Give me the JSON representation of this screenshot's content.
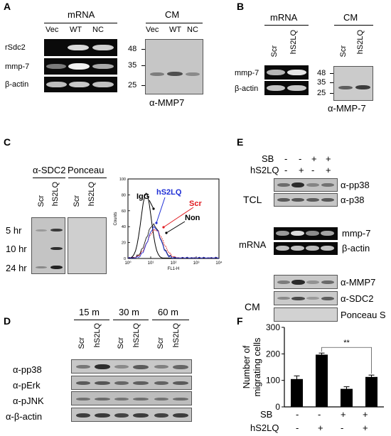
{
  "panel_a": {
    "letter": "A",
    "mrna_header": "mRNA",
    "cm_header": "CM",
    "mrna_lanes": [
      "Vec",
      "WT",
      "NC"
    ],
    "cm_lanes": [
      "Vec",
      "WT",
      "NC"
    ],
    "rows": [
      "rSdc2",
      "mmp-7",
      "β-actin"
    ],
    "mw": [
      "48",
      "35",
      "25"
    ],
    "antibody": "α-MMP7"
  },
  "panel_b": {
    "letter": "B",
    "mrna_header": "mRNA",
    "cm_header": "CM",
    "lanes": [
      "Scr",
      "hS2LQ"
    ],
    "rows": [
      "mmp-7",
      "β-actin"
    ],
    "mw": [
      "48",
      "35",
      "25"
    ],
    "antibody": "α-MMP-7"
  },
  "panel_c": {
    "letter": "C",
    "blot_header": "α-SDC2",
    "stain_header": "Ponceau",
    "lanes": [
      "Scr",
      "hS2LQ"
    ],
    "times": [
      "5 hr",
      "10 hr",
      "24 hr"
    ],
    "flow": {
      "ylabel": "Counts",
      "xlabel": "FL1-H",
      "yticks": [
        "0",
        "20",
        "40",
        "60",
        "80",
        "100"
      ],
      "xticks": [
        "10⁰",
        "10¹",
        "10²",
        "10³",
        "10⁴"
      ],
      "labels": [
        "IgG",
        "hS2LQ",
        "Scr",
        "Non"
      ],
      "colors": {
        "IgG": "#000000",
        "hS2LQ": "#1f2fd6",
        "Scr": "#e0191f",
        "Non": "#000000"
      }
    }
  },
  "panel_d": {
    "letter": "D",
    "timepoints": [
      "15 m",
      "30 m",
      "60 m"
    ],
    "lanes": [
      "Scr",
      "hS2LQ",
      "Scr",
      "hS2LQ",
      "Scr",
      "hS2LQ"
    ],
    "rows": [
      "α-pp38",
      "α-pErk",
      "α-pJNK",
      "α-β-actin"
    ]
  },
  "panel_e": {
    "letter": "E",
    "sb_label": "SB",
    "hs2lq_label": "hS2LQ",
    "sb_signs": [
      "-",
      "-",
      "+",
      "+"
    ],
    "hs2lq_signs": [
      "-",
      "+",
      "-",
      "+"
    ],
    "groups": [
      "TCL",
      "mRNA",
      "CM"
    ],
    "tcl_rows": [
      "α-pp38",
      "α-p38"
    ],
    "mrna_rows": [
      "mmp-7",
      "β-actin"
    ],
    "cm_rows": [
      "α-MMP7",
      "α-SDC2",
      "Ponceau S"
    ]
  },
  "panel_f": {
    "letter": "F",
    "significance": "**",
    "sb_label": "SB",
    "hs2lq_label": "hS2LQ",
    "sb_signs": [
      "-",
      "-",
      "+",
      "+"
    ],
    "hs2lq_signs": [
      "-",
      "+",
      "-",
      "+"
    ]
  },
  "chart_data": {
    "type": "bar",
    "ylabel": "Number of migrating cells",
    "ylim": [
      0,
      300
    ],
    "yticks": [
      "0",
      "100",
      "200",
      "300"
    ],
    "categories": [
      "SB- / hS2LQ-",
      "SB- / hS2LQ+",
      "SB+ / hS2LQ-",
      "SB+ / hS2LQ+"
    ],
    "values": [
      105,
      197,
      68,
      113
    ],
    "errors": [
      12,
      6,
      8,
      7
    ],
    "bar_color": "#000000",
    "grid": false
  }
}
